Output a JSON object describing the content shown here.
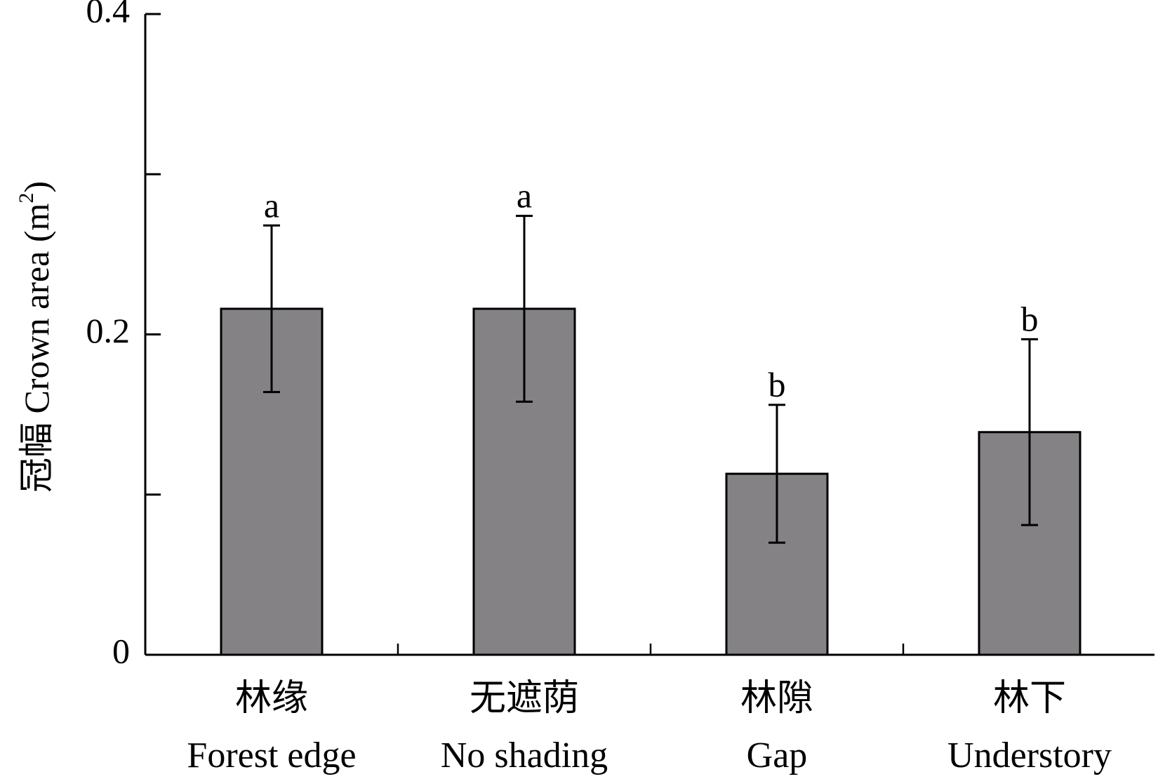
{
  "chart_data": {
    "type": "bar",
    "categories": [
      {
        "zh": "林缘",
        "en": "Forest edge"
      },
      {
        "zh": "无遮荫",
        "en": "No shading"
      },
      {
        "zh": "林隙",
        "en": "Gap"
      },
      {
        "zh": "林下",
        "en": "Understory"
      }
    ],
    "values": [
      0.216,
      0.216,
      0.113,
      0.139
    ],
    "error_bars": [
      0.052,
      0.058,
      0.043,
      0.058
    ],
    "significance_letters": [
      "a",
      "a",
      "b",
      "b"
    ],
    "ylabel": {
      "main": "冠幅 Crown area (m",
      "sup": "2",
      "close": ")"
    },
    "ylim": [
      0,
      0.4
    ],
    "yticks": [
      0,
      0.1,
      0.2,
      0.3,
      0.4
    ],
    "ytick_labels": [
      "0",
      "",
      "0.2",
      "",
      "0.4"
    ],
    "bar_color": "#848285",
    "grid": false,
    "legend": "none"
  }
}
